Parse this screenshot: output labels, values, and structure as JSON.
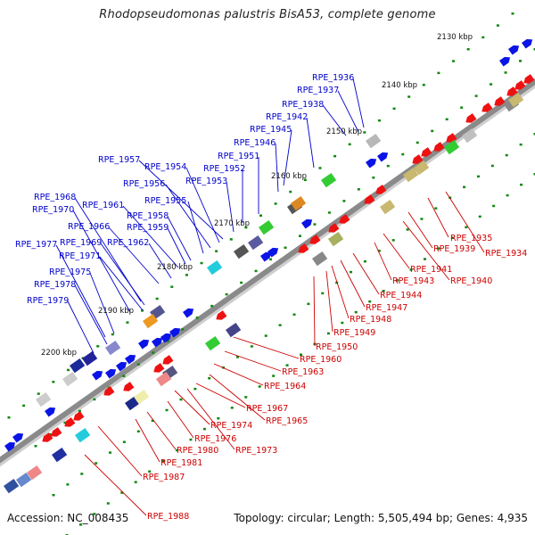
{
  "title": "Rhodopseudomonas palustris BisA53, complete genome",
  "accession": "Accession: NC_008435",
  "summary": "Topology: circular; Length: 5,505,494 bp; Genes: 4,935",
  "colors": {
    "backbone": "#888888",
    "label_blue": "#0000cc",
    "label_red": "#cc0000",
    "tick_green": "#118811",
    "label_black": "#111111"
  },
  "scale_labels": [
    "2130 kbp",
    "2140 kbp",
    "2150 kbp",
    "2160 kbp",
    "2170 kbp",
    "2180 kbp",
    "2190 kbp",
    "2200 kbp"
  ],
  "blue_labels": [
    "RPE_1936",
    "RPE_1937",
    "RPE_1938",
    "RPE_1942",
    "RPE_1945",
    "RPE_1946",
    "RPE_1951",
    "RPE_1957",
    "RPE_1954",
    "RPE_1952",
    "RPE_1956",
    "RPE_1953",
    "RPE_1968",
    "RPE_1955",
    "RPE_1961",
    "RPE_1970",
    "RPE_1958",
    "RPE_1966",
    "RPE_1959",
    "RPE_1977",
    "RPE_1969",
    "RPE_1962",
    "RPE_1971",
    "RPE_1975",
    "RPE_1978",
    "RPE_1979"
  ],
  "red_labels": [
    "RPE_1935",
    "RPE_1934",
    "RPE_1939",
    "RPE_1941",
    "RPE_1943",
    "RPE_1940",
    "RPE_1944",
    "RPE_1947",
    "RPE_1948",
    "RPE_1949",
    "RPE_1950",
    "RPE_1960",
    "RPE_1963",
    "RPE_1964",
    "RPE_1967",
    "RPE_1965",
    "RPE_1974",
    "RPE_1976",
    "RPE_1973",
    "RPE_1980",
    "RPE_1981",
    "RPE_1987",
    "RPE_1988"
  ]
}
